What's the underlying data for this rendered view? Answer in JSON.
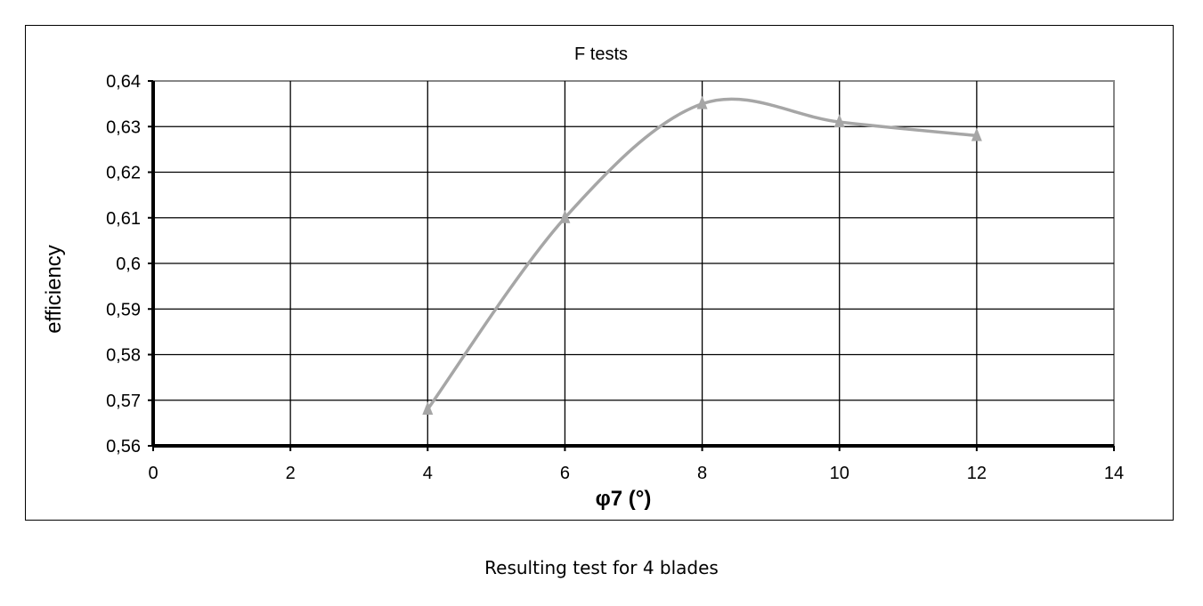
{
  "chart_data": {
    "type": "line",
    "title": "F tests",
    "xlabel": "φ7 (°)",
    "ylabel": "efficiency",
    "xlim": [
      0,
      14
    ],
    "ylim": [
      0.56,
      0.64
    ],
    "x_ticks": [
      "0",
      "2",
      "4",
      "6",
      "8",
      "10",
      "12",
      "14"
    ],
    "y_ticks": [
      "0,56",
      "0,57",
      "0,58",
      "0,59",
      "0,6",
      "0,61",
      "0,62",
      "0,63",
      "0,64"
    ],
    "grid": true,
    "smooth": true,
    "marker": "triangle",
    "line_color": "#a6a6a6",
    "series": [
      {
        "x": [
          4,
          6,
          8,
          10,
          12
        ],
        "values": [
          0.568,
          0.61,
          0.635,
          0.631,
          0.628
        ]
      }
    ]
  },
  "caption": "Resulting test for 4 blades"
}
